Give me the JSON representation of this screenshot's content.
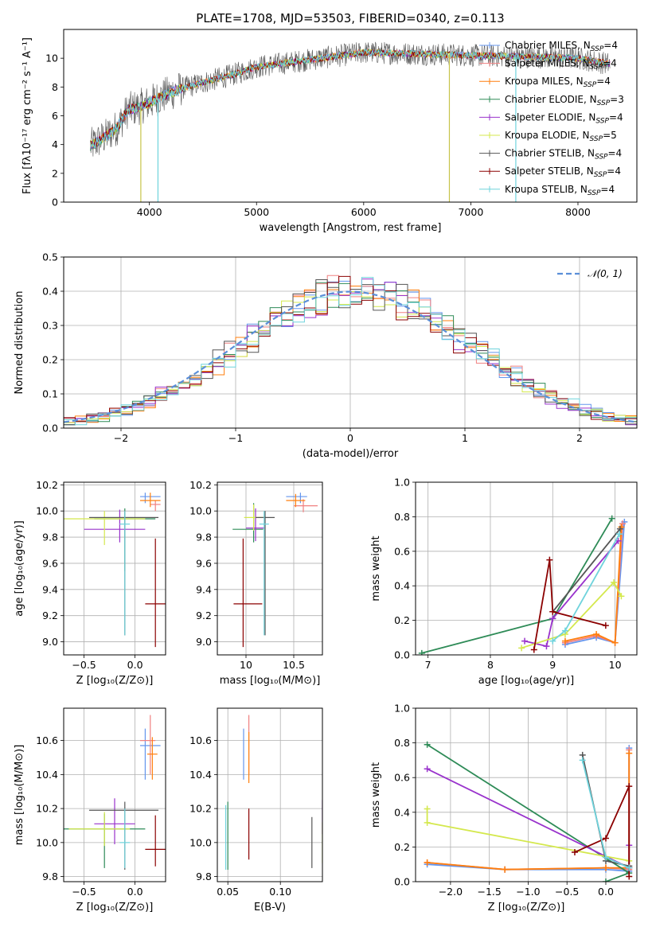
{
  "title": "PLATE=1708, MJD=53503, FIBERID=0340, z=0.113",
  "series_colors": [
    "#6495ed",
    "#f08080",
    "#ff7f0e",
    "#2e8b57",
    "#9932cc",
    "#d4e84d",
    "#555555",
    "#8b0000",
    "#6fd3dc"
  ],
  "chart_data": [
    {
      "id": "spectrum",
      "type": "line",
      "xlabel": "wavelength [Angstrom, rest frame]",
      "ylabel": "Flux [fλ10⁻¹⁷ erg cm⁻² s⁻¹ A⁻¹]",
      "xlim": [
        3200,
        8550
      ],
      "ylim": [
        0,
        12
      ],
      "xticks": [
        4000,
        5000,
        6000,
        7000,
        8000
      ],
      "yticks": [
        0,
        2,
        4,
        6,
        8,
        10
      ],
      "grid": false,
      "legend_position": "right",
      "data_range": [
        3450,
        8300
      ],
      "continuum": {
        "x": [
          3450,
          3600,
          3700,
          3800,
          3900,
          4000,
          4100,
          4300,
          4500,
          4800,
          5000,
          5200,
          5500,
          6000,
          6500,
          7000,
          7500,
          8000,
          8300
        ],
        "y": [
          3.9,
          4.6,
          5.2,
          6.4,
          6.6,
          6.9,
          7.3,
          7.9,
          8.3,
          8.9,
          9.4,
          9.6,
          9.9,
          10.4,
          10.3,
          10.2,
          10.1,
          10.0,
          9.6
        ]
      },
      "legend": [
        "Chabrier MILES, N_SSP=4",
        "Salpeter MILES, N_SSP=4",
        "Kroupa MILES, N_SSP=4",
        "Chabrier ELODIE, N_SSP=3",
        "Salpeter ELODIE, N_SSP=4",
        "Kroupa ELODIE, N_SSP=5",
        "Chabrier STELIB, N_SSP=4",
        "Salpeter STELIB, N_SSP=4",
        "Kroupa STELIB, N_SSP=4"
      ],
      "spikes": [
        {
          "x": 3920,
          "y": 0
        },
        {
          "x": 4080,
          "y": 0
        },
        {
          "x": 6800,
          "y": 0
        },
        {
          "x": 7420,
          "y": 0
        }
      ]
    },
    {
      "id": "residuals",
      "type": "histogram",
      "xlabel": "(data-model)/error",
      "ylabel": "Normed distribution",
      "xlim": [
        -2.5,
        2.5
      ],
      "ylim": [
        0,
        0.5
      ],
      "xticks": [
        -2,
        -1,
        0,
        1,
        2
      ],
      "yticks": [
        0.0,
        0.1,
        0.2,
        0.3,
        0.4,
        0.5
      ],
      "grid": true,
      "bin_width": 0.1,
      "legend": [
        "𝒩(0, 1)"
      ],
      "legend_position": "top-right",
      "gaussian": {
        "mean": 0,
        "sigma": 1
      }
    },
    {
      "id": "age-vs-Z",
      "type": "errorbar",
      "xlabel": "Z [log₁₀(Z/Z⊙)]",
      "ylabel": "age  [log₁₀(age/yr)]",
      "xlim": [
        -0.7,
        0.3
      ],
      "ylim": [
        8.9,
        10.22
      ],
      "xticks": [
        -0.5,
        0.0
      ],
      "xtick_labels": [
        "−0.5",
        "0.0"
      ],
      "yticks": [
        9.0,
        9.2,
        9.4,
        9.6,
        9.8,
        10.0,
        10.2
      ],
      "grid": true,
      "points": [
        {
          "x": 0.1,
          "xerr": [
            0.05,
            0.15
          ],
          "y": 10.11,
          "yerr": [
            0.05,
            0.03
          ]
        },
        {
          "x": 0.2,
          "xerr": [
            0.05,
            0.05
          ],
          "y": 10.05,
          "yerr": [
            0.05,
            0.03
          ]
        },
        {
          "x": 0.15,
          "xerr": [
            0.1,
            0.1
          ],
          "y": 10.08,
          "yerr": [
            0.05,
            0.06
          ]
        },
        {
          "x": -0.1,
          "xerr": [
            0.3,
            0.3
          ],
          "y": 9.94,
          "yerr": [
            0.4,
            0.08
          ]
        },
        {
          "x": -0.15,
          "xerr": [
            0.35,
            0.25
          ],
          "y": 9.86,
          "yerr": [
            0.1,
            0.15
          ]
        },
        {
          "x": -0.3,
          "xerr": [
            0.4,
            0.4
          ],
          "y": 9.94,
          "yerr": [
            0.2,
            0.06
          ]
        },
        {
          "x": -0.1,
          "xerr": [
            0.35,
            0.33
          ],
          "y": 9.95,
          "yerr": [
            0.9,
            0.05
          ]
        },
        {
          "x": 0.2,
          "xerr": [
            0.1,
            0.1
          ],
          "y": 9.29,
          "yerr": [
            0.33,
            0.5
          ]
        },
        {
          "x": -0.1,
          "xerr": [
            0.05,
            0.05
          ],
          "y": 9.9,
          "yerr": [
            0.85,
            0.1
          ]
        }
      ]
    },
    {
      "id": "age-vs-mass",
      "type": "errorbar",
      "xlabel": "mass [log₁₀(M/M⊙)]",
      "ylabel": "",
      "xlim": [
        9.7,
        10.8
      ],
      "ylim": [
        8.9,
        10.22
      ],
      "xticks": [
        10.0,
        10.5
      ],
      "yticks": [
        9.0,
        9.2,
        9.4,
        9.6,
        9.8,
        10.0,
        10.2
      ],
      "grid": true,
      "points": [
        {
          "x": 10.57,
          "xerr": [
            0.15,
            0.07
          ],
          "y": 10.11,
          "yerr": [
            0.05,
            0.03
          ]
        },
        {
          "x": 10.6,
          "xerr": [
            0.1,
            0.15
          ],
          "y": 10.04,
          "yerr": [
            0.05,
            0.05
          ]
        },
        {
          "x": 10.52,
          "xerr": [
            0.1,
            0.1
          ],
          "y": 10.08,
          "yerr": [
            0.05,
            0.05
          ]
        },
        {
          "x": 10.08,
          "xerr": [
            0.22,
            0.1
          ],
          "y": 9.86,
          "yerr": [
            0.1,
            0.2
          ]
        },
        {
          "x": 10.1,
          "xerr": [
            0.1,
            0.1
          ],
          "y": 9.87,
          "yerr": [
            0.1,
            0.15
          ]
        },
        {
          "x": 10.08,
          "xerr": [
            0.1,
            0.1
          ],
          "y": 9.95,
          "yerr": [
            0.1,
            0.1
          ]
        },
        {
          "x": 10.2,
          "xerr": [
            0.1,
            0.1
          ],
          "y": 9.95,
          "yerr": [
            0.9,
            0.05
          ]
        },
        {
          "x": 9.97,
          "xerr": [
            0.1,
            0.2
          ],
          "y": 9.29,
          "yerr": [
            0.33,
            0.5
          ]
        },
        {
          "x": 10.19,
          "xerr": [
            0.05,
            0.05
          ],
          "y": 9.9,
          "yerr": [
            0.85,
            0.1
          ]
        }
      ]
    },
    {
      "id": "weight-vs-age",
      "type": "line",
      "xlabel": "age  [log₁₀(age/yr)]",
      "ylabel": "mass weight",
      "xlim": [
        6.8,
        10.35
      ],
      "ylim": [
        0,
        1.0
      ],
      "xticks": [
        7,
        8,
        9,
        10
      ],
      "yticks": [
        0.0,
        0.2,
        0.4,
        0.6,
        0.8,
        1.0
      ],
      "grid": true,
      "series": [
        {
          "x": [
            9.2,
            9.7,
            10.0,
            10.15
          ],
          "y": [
            0.06,
            0.1,
            0.07,
            0.77
          ]
        },
        {
          "x": [
            9.2,
            9.7,
            10.0,
            10.12
          ],
          "y": [
            0.07,
            0.11,
            0.07,
            0.76
          ]
        },
        {
          "x": [
            9.2,
            9.7,
            10.0,
            10.1
          ],
          "y": [
            0.08,
            0.12,
            0.07,
            0.74
          ]
        },
        {
          "x": [
            6.9,
            9.0,
            9.95
          ],
          "y": [
            0.01,
            0.21,
            0.79
          ]
        },
        {
          "x": [
            8.55,
            8.9,
            9.0,
            10.05
          ],
          "y": [
            0.08,
            0.05,
            0.21,
            0.66
          ]
        },
        {
          "x": [
            8.5,
            9.2,
            9.98,
            10.1
          ],
          "y": [
            0.04,
            0.12,
            0.42,
            0.34
          ]
        },
        {
          "x": [
            9.0,
            10.08
          ],
          "y": [
            0.25,
            0.73
          ]
        },
        {
          "x": [
            8.7,
            8.95,
            9.0,
            9.85
          ],
          "y": [
            0.03,
            0.55,
            0.25,
            0.17
          ]
        },
        {
          "x": [
            9.0,
            9.2,
            10.07
          ],
          "y": [
            0.08,
            0.14,
            0.7
          ]
        }
      ]
    },
    {
      "id": "mass-vs-Z",
      "type": "errorbar",
      "xlabel": "Z [log₁₀(Z/Z⊙)]",
      "ylabel": "mass [log₁₀(M/M⊙)]",
      "xlim": [
        -0.7,
        0.3
      ],
      "ylim": [
        9.77,
        10.79
      ],
      "xticks": [
        -0.5,
        0.0
      ],
      "xtick_labels": [
        "−0.5",
        "0.0"
      ],
      "yticks": [
        9.8,
        10.0,
        10.2,
        10.4,
        10.6
      ],
      "grid": true,
      "points": [
        {
          "x": 0.1,
          "xerr": [
            0.05,
            0.15
          ],
          "y": 10.57,
          "yerr": [
            0.2,
            0.1
          ]
        },
        {
          "x": 0.15,
          "xerr": [
            0.1,
            0.05
          ],
          "y": 10.6,
          "yerr": [
            0.2,
            0.15
          ]
        },
        {
          "x": 0.17,
          "xerr": [
            0.05,
            0.05
          ],
          "y": 10.52,
          "yerr": [
            0.15,
            0.1
          ]
        },
        {
          "x": -0.3,
          "xerr": [
            0.4,
            0.4
          ],
          "y": 10.08,
          "yerr": [
            0.23,
            0.09
          ]
        },
        {
          "x": -0.2,
          "xerr": [
            0.2,
            0.2
          ],
          "y": 10.11,
          "yerr": [
            0.12,
            0.15
          ]
        },
        {
          "x": -0.3,
          "xerr": [
            0.35,
            0.25
          ],
          "y": 10.08,
          "yerr": [
            0.1,
            0.1
          ]
        },
        {
          "x": -0.1,
          "xerr": [
            0.35,
            0.33
          ],
          "y": 10.19,
          "yerr": [
            0.35,
            0.05
          ]
        },
        {
          "x": 0.2,
          "xerr": [
            0.1,
            0.1
          ],
          "y": 9.96,
          "yerr": [
            0.1,
            0.2
          ]
        },
        {
          "x": -0.1,
          "xerr": [
            0.05,
            0.05
          ],
          "y": 10.0,
          "yerr": [
            0.15,
            0.2
          ]
        }
      ]
    },
    {
      "id": "mass-vs-EBV",
      "type": "errorbar",
      "xlabel": "E(B-V)",
      "ylabel": "",
      "xlim": [
        0.04,
        0.14
      ],
      "ylim": [
        9.77,
        10.79
      ],
      "xticks": [
        0.05,
        0.1
      ],
      "xtick_labels": [
        "0.05",
        "0.10"
      ],
      "yticks": [
        9.8,
        10.0,
        10.2,
        10.4,
        10.6
      ],
      "grid": true,
      "points": [
        {
          "x": 0.065,
          "y": 10.52,
          "yerr": [
            0.15,
            0.15
          ]
        },
        {
          "x": 0.07,
          "y": 10.6,
          "yerr": [
            0.2,
            0.15
          ]
        },
        {
          "x": 0.07,
          "y": 10.5,
          "yerr": [
            0.15,
            0.15
          ]
        },
        {
          "x": 0.05,
          "y": 10.04,
          "yerr": [
            0.2,
            0.2
          ]
        },
        {
          "x": 0.14,
          "y": 10.15,
          "yerr": [
            0.1,
            0.1
          ]
        },
        {
          "x": 0.14,
          "y": 10.0,
          "yerr": [
            0.12,
            0.12
          ]
        },
        {
          "x": 0.13,
          "y": 10.0,
          "yerr": [
            0.15,
            0.15
          ]
        },
        {
          "x": 0.07,
          "y": 10.05,
          "yerr": [
            0.15,
            0.15
          ]
        },
        {
          "x": 0.048,
          "y": 10.02,
          "yerr": [
            0.18,
            0.2
          ]
        }
      ]
    },
    {
      "id": "weight-vs-Z",
      "type": "line",
      "xlabel": "Z [log₁₀(Z/Z⊙)]",
      "ylabel": "mass weight",
      "xlim": [
        -2.45,
        0.4
      ],
      "ylim": [
        0,
        1.0
      ],
      "xticks": [
        -2.0,
        -1.5,
        -1.0,
        -0.5,
        0.0
      ],
      "xtick_labels": [
        "−2.0",
        "−1.5",
        "−1.0",
        "−0.5",
        "0.0"
      ],
      "yticks": [
        0.0,
        0.2,
        0.4,
        0.6,
        0.8,
        1.0
      ],
      "grid": true,
      "series": [
        {
          "x": [
            -2.3,
            -1.3,
            0.0,
            0.3,
            0.3
          ],
          "y": [
            0.1,
            0.07,
            0.07,
            0.06,
            0.77
          ]
        },
        {
          "x": [
            -2.3,
            -1.3,
            0.0,
            0.3,
            0.3
          ],
          "y": [
            0.11,
            0.07,
            0.08,
            0.07,
            0.76
          ]
        },
        {
          "x": [
            -2.3,
            -1.3,
            0.0,
            0.3,
            0.3
          ],
          "y": [
            0.11,
            0.07,
            0.08,
            0.08,
            0.74
          ]
        },
        {
          "x": [
            -2.3,
            0.3,
            0.0
          ],
          "y": [
            0.79,
            0.05,
            0.0
          ]
        },
        {
          "x": [
            -2.3,
            0.3,
            0.3
          ],
          "y": [
            0.65,
            0.08,
            0.21
          ]
        },
        {
          "x": [
            -2.3,
            -2.3,
            0.3
          ],
          "y": [
            0.42,
            0.34,
            0.12
          ]
        },
        {
          "x": [
            -0.3,
            0.0,
            0.3
          ],
          "y": [
            0.73,
            0.12,
            0.09
          ]
        },
        {
          "x": [
            -0.4,
            0.0,
            0.3,
            0.3
          ],
          "y": [
            0.17,
            0.25,
            0.55,
            0.03
          ]
        },
        {
          "x": [
            -0.3,
            0.0,
            0.3
          ],
          "y": [
            0.7,
            0.14,
            0.08
          ]
        }
      ]
    }
  ]
}
